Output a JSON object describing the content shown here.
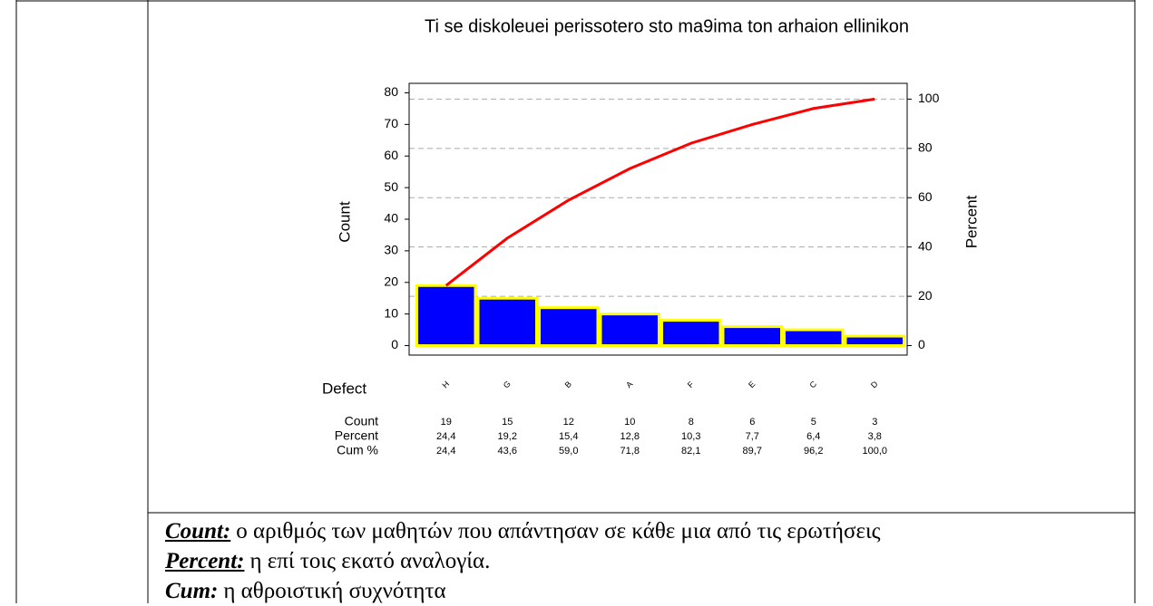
{
  "chart_data": {
    "type": "pareto",
    "title": "Ti se diskoleuei perissotero sto ma9ima ton arhaion ellinikon",
    "xlabel": "Defect",
    "ylabel": "Count",
    "y2label": "Percent",
    "categories": [
      "H",
      "G",
      "B",
      "A",
      "F",
      "E",
      "C",
      "D"
    ],
    "series": [
      {
        "name": "Count",
        "color": "#0000ff",
        "edge_color": "#ffff00",
        "values": [
          19,
          15,
          12,
          10,
          8,
          6,
          5,
          3
        ]
      },
      {
        "name": "Cum %",
        "color": "#ff0000",
        "axis": "y2",
        "values": [
          24.4,
          43.6,
          59.0,
          71.8,
          82.1,
          89.7,
          96.2,
          100.0
        ],
        "value_labels": [
          "24,4",
          "43,6",
          "59,0",
          "71,8",
          "82,1",
          "89,7",
          "96,2",
          "100,0"
        ]
      }
    ],
    "percent": {
      "name": "Percent",
      "values": [
        24.4,
        19.2,
        15.4,
        12.8,
        10.3,
        7.7,
        6.4,
        3.8
      ],
      "value_labels": [
        "24,4",
        "19,2",
        "15,4",
        "12,8",
        "10,3",
        "7,7",
        "6,4",
        "3,8"
      ]
    },
    "ylim": [
      -3,
      83
    ],
    "yticks": [
      0,
      10,
      20,
      30,
      40,
      50,
      60,
      70,
      80
    ],
    "y2lim": [
      -3.85,
      106.4
    ],
    "y2ticks": [
      0,
      20,
      40,
      60,
      80,
      100
    ],
    "grid": true
  },
  "notes": [
    {
      "term": "Count:",
      "text": "ο αριθμός των μαθητών που απάντησαν σε κάθε μια από τις ερωτήσεις"
    },
    {
      "term": "Percent:",
      "text": "η επί τοις εκατό αναλογία."
    },
    {
      "term": "Cum:",
      "text": "η αθροιστική συχνότητα"
    }
  ]
}
